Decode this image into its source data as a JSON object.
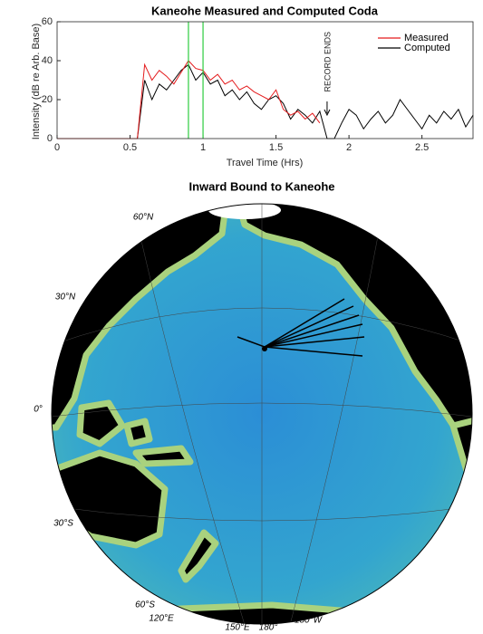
{
  "chart_data": [
    {
      "type": "line",
      "title": "Kaneohe Measured and Computed Coda",
      "xlabel": "Travel Time (Hrs)",
      "ylabel": "Intensity (dB re Arb. Base)",
      "x": [
        0,
        0.05,
        0.1,
        0.15,
        0.2,
        0.25,
        0.3,
        0.35,
        0.4,
        0.45,
        0.5,
        0.55,
        0.6,
        0.65,
        0.7,
        0.75,
        0.8,
        0.85,
        0.9,
        0.95,
        1.0,
        1.05,
        1.1,
        1.15,
        1.2,
        1.25,
        1.3,
        1.35,
        1.4,
        1.45,
        1.5,
        1.55,
        1.6,
        1.65,
        1.7,
        1.75,
        1.8,
        1.85,
        1.9,
        1.95,
        2.0,
        2.05,
        2.1,
        2.15,
        2.2,
        2.25,
        2.3,
        2.35,
        2.4,
        2.45,
        2.5,
        2.55,
        2.6,
        2.65,
        2.7,
        2.75,
        2.8,
        2.85
      ],
      "series": [
        {
          "name": "Measured",
          "color": "#e41a1c",
          "values": [
            0,
            0,
            0,
            0,
            0,
            0,
            0,
            0,
            0,
            0,
            0,
            0,
            38,
            30,
            35,
            32,
            28,
            34,
            40,
            36,
            35,
            30,
            33,
            28,
            30,
            25,
            27,
            24,
            22,
            20,
            25,
            15,
            12,
            14,
            10,
            13,
            8,
            null,
            null,
            null,
            null,
            null,
            null,
            null,
            null,
            null,
            null,
            null,
            null,
            null,
            null,
            null,
            null,
            null,
            null,
            null,
            null,
            null
          ]
        },
        {
          "name": "Computed",
          "color": "#000000",
          "values": [
            0,
            0,
            0,
            0,
            0,
            0,
            0,
            0,
            0,
            0,
            0,
            0,
            30,
            20,
            28,
            25,
            30,
            35,
            38,
            30,
            34,
            28,
            30,
            22,
            25,
            20,
            24,
            18,
            15,
            20,
            22,
            18,
            10,
            15,
            12,
            8,
            14,
            0,
            0,
            8,
            15,
            12,
            5,
            10,
            14,
            8,
            12,
            20,
            15,
            10,
            5,
            12,
            8,
            14,
            10,
            15,
            6,
            12
          ]
        }
      ],
      "vlines": [
        0.9,
        1.0
      ],
      "vline_color": "#2ecc40",
      "annotation": {
        "text": "RECORD ENDS",
        "x": 1.85
      },
      "xlim": [
        0,
        2.85
      ],
      "ylim": [
        0,
        60
      ],
      "xticks": [
        0,
        0.5,
        1,
        1.5,
        2,
        2.5
      ],
      "yticks": [
        0,
        20,
        40,
        60
      ],
      "legend": "upper right"
    },
    {
      "type": "map",
      "title": "Inward Bound to Kaneohe",
      "labels": [
        "60°N",
        "30°N",
        "0°",
        "30°S",
        "60°S",
        "120°E",
        "150°E",
        "180°",
        "150°W"
      ]
    }
  ]
}
